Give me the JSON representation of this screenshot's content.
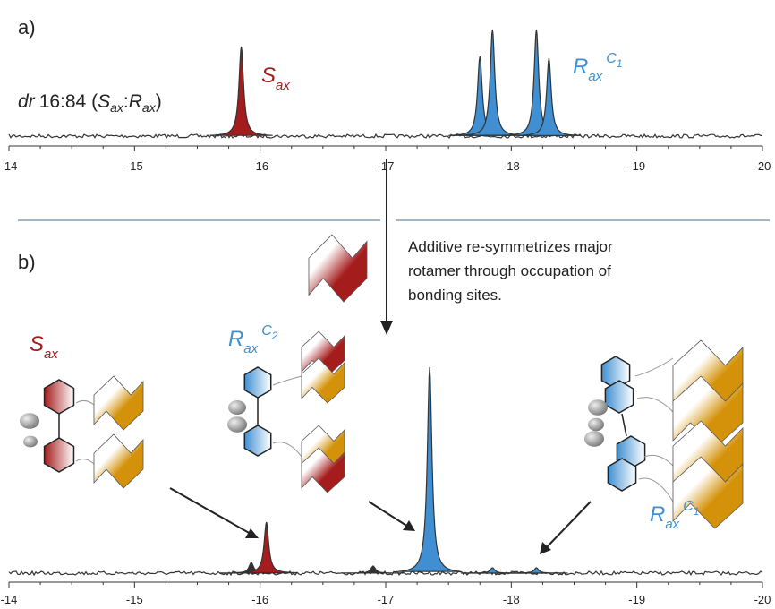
{
  "chart_data": [
    {
      "type": "spectrum",
      "panel": "a)",
      "xlim": [
        -14,
        -20
      ],
      "xticks": [
        -14,
        -15,
        -16,
        -17,
        -18,
        -19,
        -20
      ],
      "annotation": {
        "italic": "dr",
        "ratio": "16:84 (",
        "s": "S",
        "s_sub": "ax",
        "sep": ":",
        "r": "R",
        "r_sub": "ax",
        "end": ")"
      },
      "labels": [
        {
          "main": "S",
          "sub": "ax",
          "color": "#a51c1c"
        },
        {
          "main": "R",
          "sub": "ax",
          "sup": "C",
          "sup_sub": "1",
          "color": "#3f8fd2"
        }
      ],
      "peaks": {
        "x": [
          -15.85,
          -17.75,
          -17.85,
          -18.2,
          -18.3
        ],
        "values": [
          100,
          89,
          119,
          119,
          87
        ],
        "colors": [
          "#a51c1c",
          "#3f8fd2",
          "#3f8fd2",
          "#3f8fd2",
          "#3f8fd2"
        ]
      }
    },
    {
      "type": "spectrum",
      "panel": "b)",
      "xlim": [
        -14,
        -20
      ],
      "xticks": [
        -14,
        -15,
        -16,
        -17,
        -18,
        -19,
        -20
      ],
      "note": [
        "Additive re-symmetrizes major",
        "rotamer through occupation of",
        "bonding sites."
      ],
      "labels": [
        {
          "main": "S",
          "sub": "ax",
          "color": "#a51c1c"
        },
        {
          "main": "R",
          "sub": "ax",
          "sup": "C",
          "sup_sub": "2",
          "color": "#3f8fd2"
        },
        {
          "main": "R",
          "sub": "ax",
          "sup": "C",
          "sup_sub": "1",
          "color": "#3f8fd2"
        }
      ],
      "peaks": {
        "x": [
          -15.93,
          -16.05,
          -16.9,
          -17.35,
          -17.85,
          -18.2
        ],
        "values": [
          12,
          57,
          8,
          230,
          6,
          6
        ],
        "colors": [
          "#333333",
          "#a51c1c",
          "#333333",
          "#3f8fd2",
          "#3f8fd2",
          "#3f8fd2"
        ]
      }
    }
  ]
}
